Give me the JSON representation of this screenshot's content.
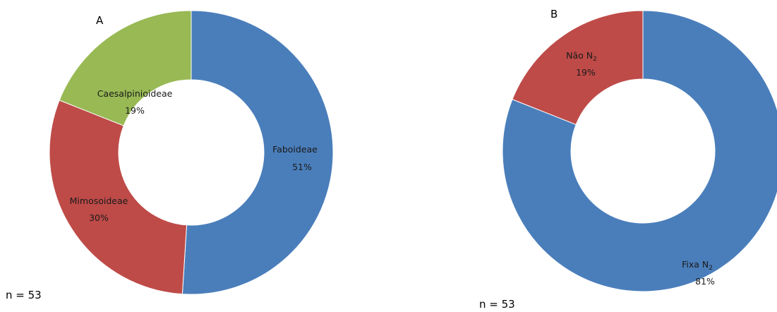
{
  "chart_data": [
    {
      "type": "pie",
      "hole": "donut",
      "title": "A",
      "note": "n = 53",
      "categories": [
        "Faboideae",
        "Mimosoideae",
        "Caesalpinioideae"
      ],
      "values": [
        51,
        30,
        19
      ],
      "labels": [
        "51%",
        "30%",
        "19%"
      ],
      "colors": [
        "#4a7ebb",
        "#be4b48",
        "#98b954"
      ]
    },
    {
      "type": "pie",
      "hole": "donut",
      "title": "B",
      "note": "n = 53",
      "categories": [
        "Fixa N",
        "Não N"
      ],
      "category_subscripts": [
        "2",
        "2"
      ],
      "values": [
        81,
        19
      ],
      "labels": [
        "81%",
        "19%"
      ],
      "colors": [
        "#4a7ebb",
        "#be4b48"
      ]
    }
  ]
}
